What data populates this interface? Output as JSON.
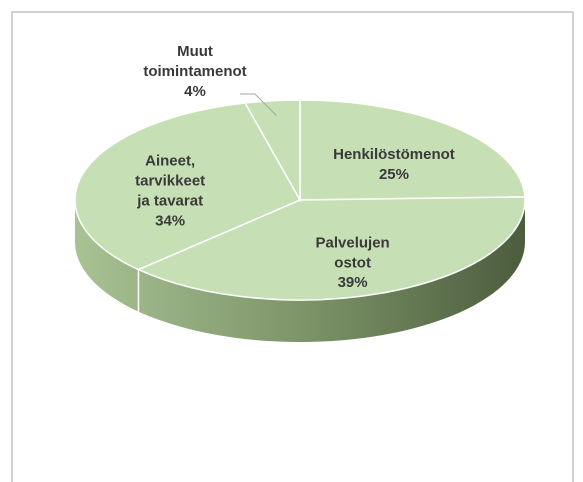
{
  "chart_data": {
    "type": "pie",
    "categories": [
      "Henkilöstömenot",
      "Palvelujen ostot",
      "Aineet, tarvikkeet ja tavarat",
      "Muut toimintamenot"
    ],
    "values": [
      25,
      39,
      34,
      4
    ],
    "value_labels": [
      "25%",
      "39%",
      "34%",
      "4%"
    ],
    "color": "#c6dfb5"
  }
}
